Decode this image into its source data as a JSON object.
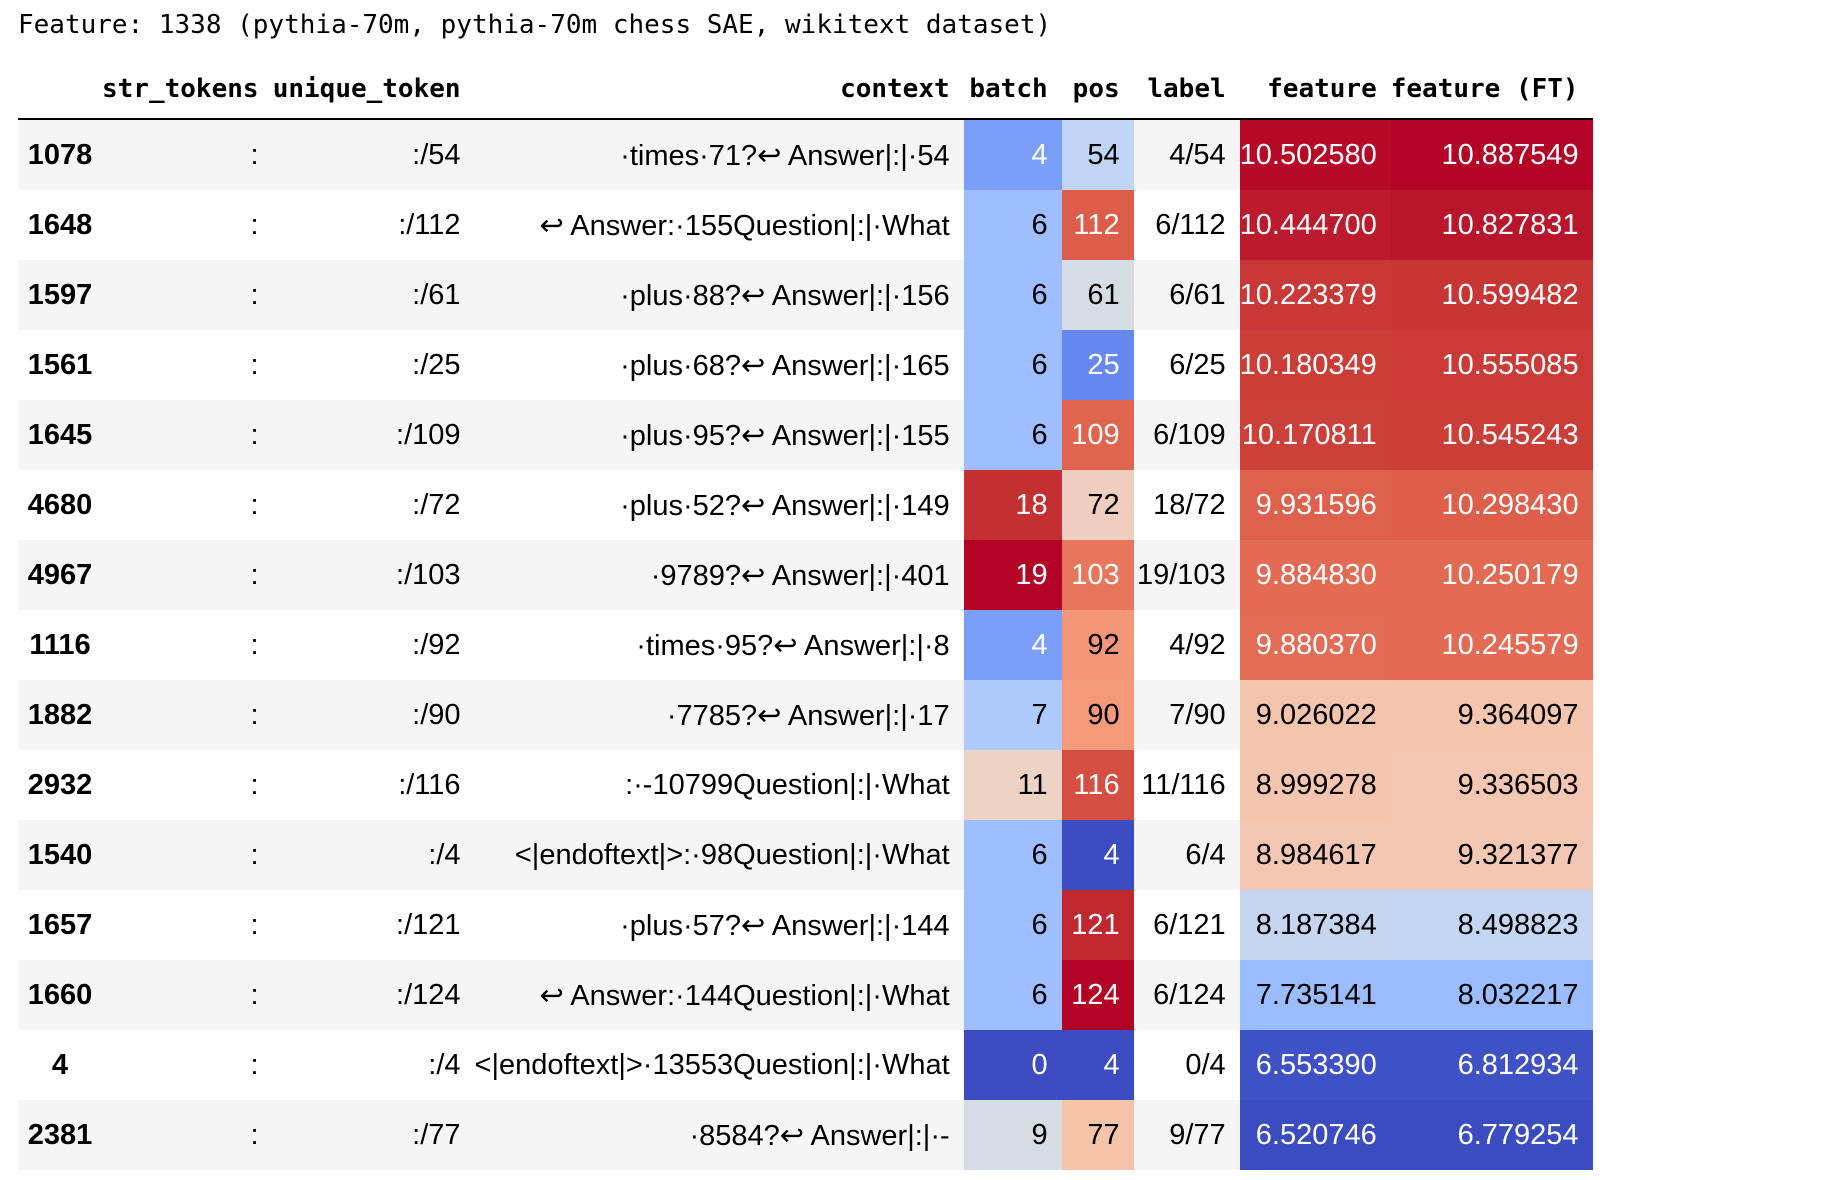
{
  "caption": "Feature: 1338 (pythia-70m, pythia-70m chess SAE, wikitext dataset)",
  "columns": {
    "str_tokens": "str_tokens",
    "unique_token": "unique_token",
    "context": "context",
    "batch": "batch",
    "pos": "pos",
    "label": "label",
    "feature": "feature",
    "feature_ft": "feature (FT)"
  },
  "rows": [
    {
      "index": "1078",
      "str_tokens": ":",
      "unique_token": ":/54",
      "context": "·times·71?↩ Answer|:|·54",
      "batch": "4",
      "pos": "54",
      "label": "4/54",
      "feature": "10.502580",
      "feature_ft": "10.887549",
      "colors": {
        "batch": "#7b9ff9",
        "pos": "#c0d4f5",
        "feature": "#b50927",
        "feature_ft": "#b40426"
      },
      "text_colors": {
        "batch": "#ffffff",
        "pos": "#000000",
        "feature": "#ffffff",
        "feature_ft": "#ffffff"
      }
    },
    {
      "index": "1648",
      "str_tokens": ":",
      "unique_token": ":/112",
      "context": "↩ Answer:·155Question|:|·What",
      "batch": "6",
      "pos": "112",
      "label": "6/112",
      "feature": "10.444700",
      "feature_ft": "10.827831",
      "colors": {
        "batch": "#9ebeff",
        "pos": "#dc5d4a",
        "feature": "#bb1b2c",
        "feature_ft": "#ba162b"
      },
      "text_colors": {
        "batch": "#000000",
        "pos": "#ffffff",
        "feature": "#ffffff",
        "feature_ft": "#ffffff"
      }
    },
    {
      "index": "1597",
      "str_tokens": ":",
      "unique_token": ":/61",
      "context": "·plus·88?↩ Answer|:|·156",
      "batch": "6",
      "pos": "61",
      "label": "6/61",
      "feature": "10.223379",
      "feature_ft": "10.599482",
      "colors": {
        "batch": "#9ebeff",
        "pos": "#d6dce4",
        "feature": "#c83836",
        "feature_ft": "#c73635"
      },
      "text_colors": {
        "batch": "#000000",
        "pos": "#000000",
        "feature": "#ffffff",
        "feature_ft": "#ffffff"
      }
    },
    {
      "index": "1561",
      "str_tokens": ":",
      "unique_token": ":/25",
      "context": "·plus·68?↩ Answer|:|·165",
      "batch": "6",
      "pos": "25",
      "label": "6/25",
      "feature": "10.180349",
      "feature_ft": "10.555085",
      "colors": {
        "batch": "#9ebeff",
        "pos": "#6788ee",
        "feature": "#cb3e38",
        "feature_ft": "#ca3b37"
      },
      "text_colors": {
        "batch": "#000000",
        "pos": "#ffffff",
        "feature": "#ffffff",
        "feature_ft": "#ffffff"
      }
    },
    {
      "index": "1645",
      "str_tokens": ":",
      "unique_token": ":/109",
      "context": "·plus·95?↩ Answer|:|·155",
      "batch": "6",
      "pos": "109",
      "label": "6/109",
      "feature": "10.170811",
      "feature_ft": "10.545243",
      "colors": {
        "batch": "#9ebeff",
        "pos": "#e0654f",
        "feature": "#cc403a",
        "feature_ft": "#cb3e38"
      },
      "text_colors": {
        "batch": "#000000",
        "pos": "#ffffff",
        "feature": "#ffffff",
        "feature_ft": "#ffffff"
      }
    },
    {
      "index": "4680",
      "str_tokens": ":",
      "unique_token": ":/72",
      "context": "·plus·52?↩ Answer|:|·149",
      "batch": "18",
      "pos": "72",
      "label": "18/72",
      "feature": "9.931596",
      "feature_ft": "10.298430",
      "colors": {
        "batch": "#c43032",
        "pos": "#efcfbf",
        "feature": "#de614d",
        "feature_ft": "#dd5f4b"
      },
      "text_colors": {
        "batch": "#ffffff",
        "pos": "#000000",
        "feature": "#ffffff",
        "feature_ft": "#ffffff"
      }
    },
    {
      "index": "4967",
      "str_tokens": ":",
      "unique_token": ":/103",
      "context": "·9789?↩ Answer|:|·401",
      "batch": "19",
      "pos": "103",
      "label": "19/103",
      "feature": "9.884830",
      "feature_ft": "10.250179",
      "colors": {
        "batch": "#b40426",
        "pos": "#e8765c",
        "feature": "#e36b54",
        "feature_ft": "#e26952"
      },
      "text_colors": {
        "batch": "#ffffff",
        "pos": "#ffffff",
        "feature": "#ffffff",
        "feature_ft": "#ffffff"
      }
    },
    {
      "index": "1116",
      "str_tokens": ":",
      "unique_token": ":/92",
      "context": "·times·95?↩ Answer|:|·8",
      "batch": "4",
      "pos": "92",
      "label": "4/92",
      "feature": "9.880370",
      "feature_ft": "10.245579",
      "colors": {
        "batch": "#7b9ff9",
        "pos": "#f39778",
        "feature": "#e36c55",
        "feature_ft": "#e36b54"
      },
      "text_colors": {
        "batch": "#ffffff",
        "pos": "#000000",
        "feature": "#ffffff",
        "feature_ft": "#ffffff"
      }
    },
    {
      "index": "1882",
      "str_tokens": ":",
      "unique_token": ":/90",
      "context": "·7785?↩ Answer|:|·17",
      "batch": "7",
      "pos": "90",
      "label": "7/90",
      "feature": "9.026022",
      "feature_ft": "9.364097",
      "colors": {
        "batch": "#afcafc",
        "pos": "#f39a7b",
        "feature": "#f4c5ad",
        "feature_ft": "#f4c6af"
      },
      "text_colors": {
        "batch": "#000000",
        "pos": "#000000",
        "feature": "#000000",
        "feature_ft": "#000000"
      }
    },
    {
      "index": "2932",
      "str_tokens": ":",
      "unique_token": ":/116",
      "context": ":·-10799Question|:|·What",
      "batch": "11",
      "pos": "116",
      "label": "11/116",
      "feature": "8.999278",
      "feature_ft": "9.336503",
      "colors": {
        "batch": "#ecd3c5",
        "pos": "#d44e41",
        "feature": "#f4c6af",
        "feature_ft": "#f3c7b1"
      },
      "text_colors": {
        "batch": "#000000",
        "pos": "#ffffff",
        "feature": "#000000",
        "feature_ft": "#000000"
      }
    },
    {
      "index": "1540",
      "str_tokens": ":",
      "unique_token": ":/4",
      "context": "<|endoftext|>:·98Question|:|·What",
      "batch": "6",
      "pos": "4",
      "label": "6/4",
      "feature": "8.984617",
      "feature_ft": "9.321377",
      "colors": {
        "batch": "#9ebeff",
        "pos": "#3b4cc0",
        "feature": "#f3c7b1",
        "feature_ft": "#f3c8b2"
      },
      "text_colors": {
        "batch": "#000000",
        "pos": "#ffffff",
        "feature": "#000000",
        "feature_ft": "#000000"
      }
    },
    {
      "index": "1657",
      "str_tokens": ":",
      "unique_token": ":/121",
      "context": "·plus·57?↩ Answer|:|·144",
      "batch": "6",
      "pos": "121",
      "label": "6/121",
      "feature": "8.187384",
      "feature_ft": "8.498823",
      "colors": {
        "batch": "#9ebeff",
        "pos": "#c0282f",
        "feature": "#c6d6f1",
        "feature_ft": "#c5d6f2"
      },
      "text_colors": {
        "batch": "#000000",
        "pos": "#ffffff",
        "feature": "#000000",
        "feature_ft": "#000000"
      }
    },
    {
      "index": "1660",
      "str_tokens": ":",
      "unique_token": ":/124",
      "context": "↩ Answer:·144Question|:|·What",
      "batch": "6",
      "pos": "124",
      "label": "6/124",
      "feature": "7.735141",
      "feature_ft": "8.032217",
      "colors": {
        "batch": "#9ebeff",
        "pos": "#b40426",
        "feature": "#9bbcff",
        "feature_ft": "#9bbcff"
      },
      "text_colors": {
        "batch": "#000000",
        "pos": "#ffffff",
        "feature": "#000000",
        "feature_ft": "#000000"
      }
    },
    {
      "index": "4",
      "str_tokens": ":",
      "unique_token": ":/4",
      "context": "<|endoftext|>·13553Question|:|·What",
      "batch": "0",
      "pos": "4",
      "label": "0/4",
      "feature": "6.553390",
      "feature_ft": "6.812934",
      "colors": {
        "batch": "#3b4cc0",
        "pos": "#3b4cc0",
        "feature": "#3e51c5",
        "feature_ft": "#3e51c5"
      },
      "text_colors": {
        "batch": "#ffffff",
        "pos": "#ffffff",
        "feature": "#ffffff",
        "feature_ft": "#ffffff"
      }
    },
    {
      "index": "2381",
      "str_tokens": ":",
      "unique_token": ":/77",
      "context": "·8584?↩ Answer|:|·-",
      "batch": "9",
      "pos": "77",
      "label": "9/77",
      "feature": "6.520746",
      "feature_ft": "6.779254",
      "colors": {
        "batch": "#d6dce4",
        "pos": "#f5c2aa",
        "feature": "#3b4cc0",
        "feature_ft": "#3b4cc0"
      },
      "text_colors": {
        "batch": "#000000",
        "pos": "#000000",
        "feature": "#ffffff",
        "feature_ft": "#ffffff"
      }
    }
  ]
}
